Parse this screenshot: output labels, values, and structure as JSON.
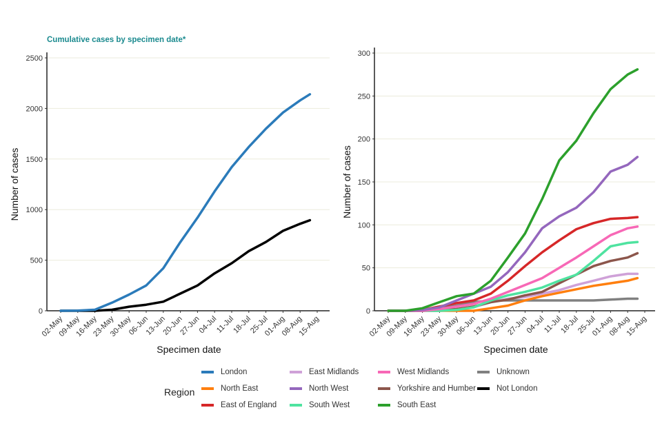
{
  "title": "Cumulative cases by specimen date*",
  "chart_data": [
    {
      "type": "line",
      "title": "Cumulative cases by specimen date*",
      "xlabel": "Specimen date",
      "ylabel": "Number of cases",
      "ylim": [
        0,
        2500
      ],
      "yticks": [
        0,
        500,
        1000,
        1500,
        2000,
        2500
      ],
      "xticks": [
        "02-May",
        "09-May",
        "16-May",
        "23-May",
        "30-May",
        "06-Jun",
        "13-Jun",
        "20-Jun",
        "27-Jun",
        "04-Jul",
        "11-Jul",
        "18-Jul",
        "25-Jul",
        "01-Aug",
        "08-Aug",
        "15-Aug"
      ],
      "x_day_offsets": [
        0,
        7,
        14,
        21,
        28,
        35,
        42,
        49,
        56,
        63,
        70,
        77,
        84,
        91,
        98,
        102
      ],
      "grid": "horizontal",
      "series": [
        {
          "name": "London",
          "color": "#2b7bba",
          "values": [
            0,
            2,
            10,
            80,
            160,
            250,
            420,
            680,
            920,
            1180,
            1420,
            1620,
            1800,
            1960,
            2080,
            2140
          ]
        },
        {
          "name": "Not London",
          "color": "#000000",
          "values": [
            0,
            0,
            0,
            10,
            40,
            60,
            90,
            170,
            250,
            370,
            470,
            590,
            680,
            790,
            860,
            895
          ]
        }
      ]
    },
    {
      "type": "line",
      "title": "",
      "xlabel": "Specimen date",
      "ylabel": "Number of cases",
      "ylim": [
        0,
        300
      ],
      "yticks": [
        0,
        50,
        100,
        150,
        200,
        250,
        300
      ],
      "xticks": [
        "02-May",
        "09-May",
        "16-May",
        "23-May",
        "30-May",
        "06-Jun",
        "13-Jun",
        "20-Jun",
        "27-Jun",
        "04-Jul",
        "11-Jul",
        "18-Jul",
        "25-Jul",
        "01-Aug",
        "08-Aug",
        "15-Aug"
      ],
      "x_day_offsets": [
        0,
        7,
        14,
        21,
        28,
        35,
        42,
        49,
        56,
        63,
        70,
        77,
        84,
        91,
        98,
        102
      ],
      "grid": "horizontal",
      "series": [
        {
          "name": "South East",
          "color": "#2ca02c",
          "values": [
            0,
            0,
            3,
            10,
            17,
            20,
            35,
            62,
            90,
            130,
            175,
            198,
            230,
            258,
            275,
            281
          ]
        },
        {
          "name": "North West",
          "color": "#9467bd",
          "values": [
            0,
            0,
            1,
            4,
            12,
            20,
            28,
            45,
            68,
            96,
            110,
            120,
            138,
            162,
            170,
            179
          ]
        },
        {
          "name": "East of England",
          "color": "#d62728",
          "values": [
            0,
            0,
            1,
            5,
            9,
            12,
            20,
            35,
            52,
            68,
            82,
            95,
            102,
            107,
            108,
            109
          ]
        },
        {
          "name": "West Midlands",
          "color": "#f768b6",
          "values": [
            0,
            0,
            0,
            2,
            5,
            8,
            14,
            22,
            30,
            38,
            50,
            62,
            75,
            88,
            96,
            98
          ]
        },
        {
          "name": "South West",
          "color": "#4fe3a0",
          "values": [
            0,
            0,
            0,
            0,
            1,
            4,
            12,
            18,
            22,
            27,
            35,
            42,
            58,
            75,
            79,
            80
          ]
        },
        {
          "name": "Yorkshire and Humber",
          "color": "#8c564b",
          "values": [
            0,
            0,
            0,
            1,
            2,
            5,
            10,
            13,
            18,
            22,
            32,
            42,
            52,
            58,
            62,
            67
          ]
        },
        {
          "name": "East Midlands",
          "color": "#cfa1d8",
          "values": [
            0,
            0,
            0,
            0,
            2,
            4,
            10,
            14,
            16,
            20,
            24,
            30,
            35,
            40,
            43,
            43
          ]
        },
        {
          "name": "North East",
          "color": "#ff7f0e",
          "values": [
            0,
            0,
            0,
            0,
            0,
            0,
            3,
            6,
            12,
            17,
            21,
            25,
            29,
            32,
            35,
            38
          ]
        },
        {
          "name": "Unknown",
          "color": "#808080",
          "values": [
            0,
            0,
            1,
            3,
            6,
            10,
            12,
            12,
            12,
            12,
            12,
            12,
            12,
            13,
            14,
            14
          ]
        }
      ]
    }
  ],
  "legend": {
    "title": "Region",
    "items": [
      {
        "label": "London",
        "color": "#2b7bba"
      },
      {
        "label": "North East",
        "color": "#ff7f0e"
      },
      {
        "label": "East of England",
        "color": "#d62728"
      },
      {
        "label": "East Midlands",
        "color": "#cfa1d8"
      },
      {
        "label": "North West",
        "color": "#9467bd"
      },
      {
        "label": "South West",
        "color": "#4fe3a0"
      },
      {
        "label": "West Midlands",
        "color": "#f768b6"
      },
      {
        "label": "Yorkshire and Humber",
        "color": "#8c564b"
      },
      {
        "label": "South East",
        "color": "#2ca02c"
      },
      {
        "label": "Unknown",
        "color": "#808080"
      },
      {
        "label": "Not London",
        "color": "#000000"
      }
    ]
  }
}
